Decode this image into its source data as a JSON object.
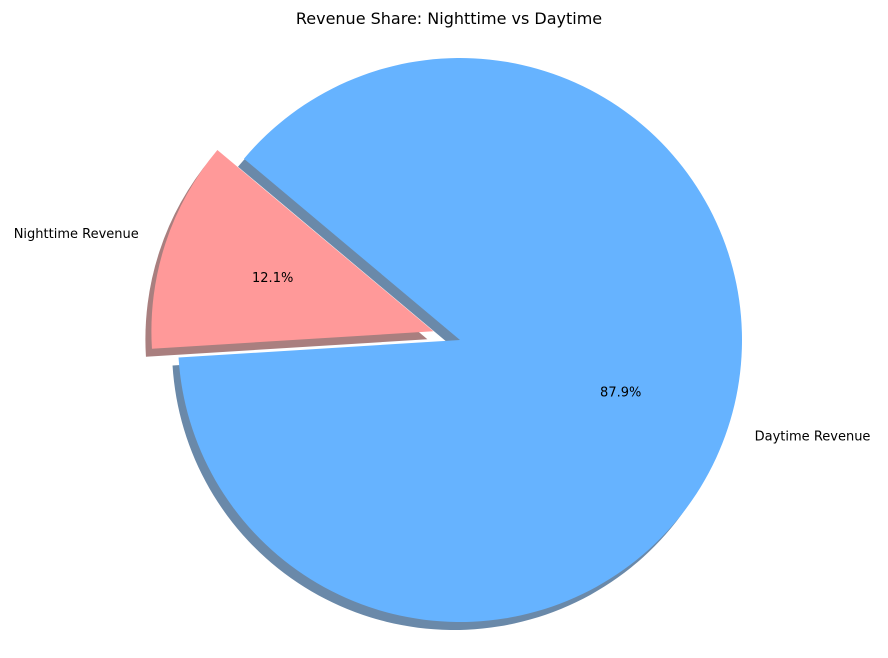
{
  "chart_data": {
    "type": "pie",
    "title": "Revenue Share: Nighttime vs Daytime",
    "slices": [
      {
        "label": "Nighttime Revenue",
        "value": 12.1,
        "pct_label": "12.1%",
        "color": "#ff9999",
        "exploded": true
      },
      {
        "label": "Daytime Revenue",
        "value": 87.9,
        "pct_label": "87.9%",
        "color": "#66b3ff",
        "exploded": false
      }
    ],
    "shadow": true,
    "legend": "none"
  }
}
